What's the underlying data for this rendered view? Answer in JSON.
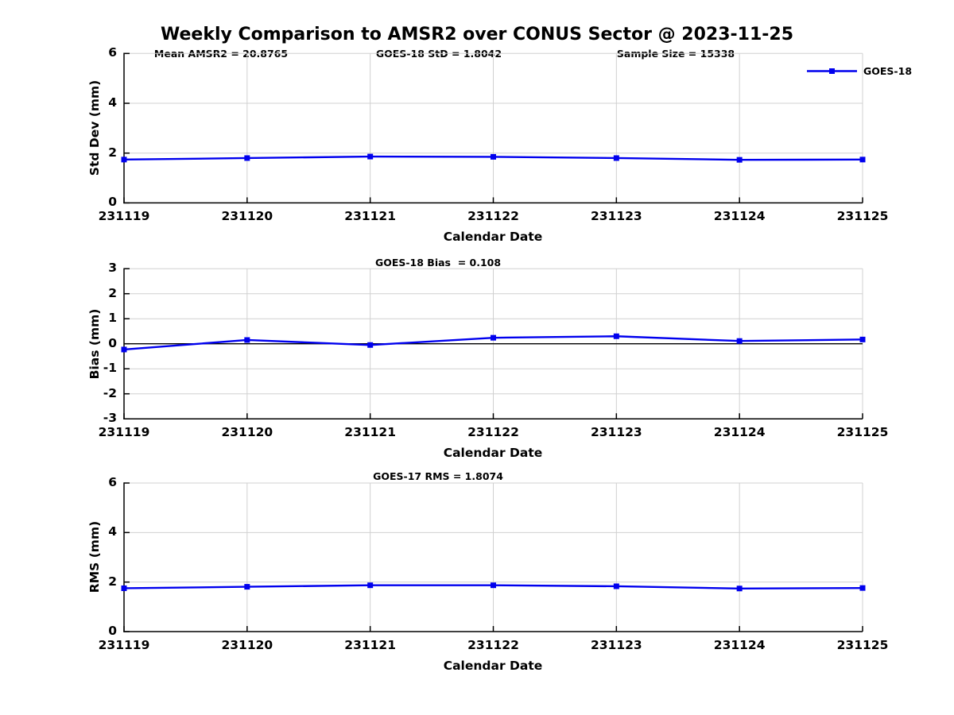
{
  "title": "Weekly Comparison to AMSR2 over CONUS Sector @ 2023-11-25",
  "legend": {
    "label": "GOES-18"
  },
  "colors": {
    "line": "#0000ee",
    "grid": "#d0d0d0",
    "axis": "#000000",
    "background": "#ffffff"
  },
  "chart_data": [
    {
      "type": "line",
      "categories": [
        "231119",
        "231120",
        "231121",
        "231122",
        "231123",
        "231124",
        "231125"
      ],
      "series": [
        {
          "name": "GOES-18",
          "values": [
            1.74,
            1.8,
            1.86,
            1.85,
            1.8,
            1.73,
            1.74
          ]
        }
      ],
      "annotations": [
        "Mean AMSR2 = 20.8765",
        "GOES-18 StD = 1.8042",
        "Sample Size = 15338"
      ],
      "xlabel": "Calendar Date",
      "ylabel": "Std Dev (mm)",
      "ylim": [
        0,
        6
      ],
      "yticks": [
        0,
        2,
        4,
        6
      ],
      "grid": true,
      "legend_position": "top-right",
      "marker": "square"
    },
    {
      "type": "line",
      "categories": [
        "231119",
        "231120",
        "231121",
        "231122",
        "231123",
        "231124",
        "231125"
      ],
      "series": [
        {
          "name": "GOES-18",
          "values": [
            -0.23,
            0.15,
            -0.05,
            0.24,
            0.3,
            0.11,
            0.17
          ]
        }
      ],
      "annotations": [
        "GOES-18 Bias  = 0.108"
      ],
      "xlabel": "Calendar Date",
      "ylabel": "Bias (mm)",
      "ylim": [
        -3,
        3
      ],
      "yticks": [
        -3,
        -2,
        -1,
        0,
        1,
        2,
        3
      ],
      "zero_line": true,
      "grid": true,
      "marker": "square"
    },
    {
      "type": "line",
      "categories": [
        "231119",
        "231120",
        "231121",
        "231122",
        "231123",
        "231124",
        "231125"
      ],
      "series": [
        {
          "name": "GOES-18",
          "values": [
            1.75,
            1.81,
            1.87,
            1.87,
            1.83,
            1.74,
            1.76
          ]
        }
      ],
      "annotations": [
        "GOES-17 RMS = 1.8074"
      ],
      "xlabel": "Calendar Date",
      "ylabel": "RMS (mm)",
      "ylim": [
        0,
        6
      ],
      "yticks": [
        0,
        2,
        4,
        6
      ],
      "grid": true,
      "marker": "square"
    }
  ]
}
